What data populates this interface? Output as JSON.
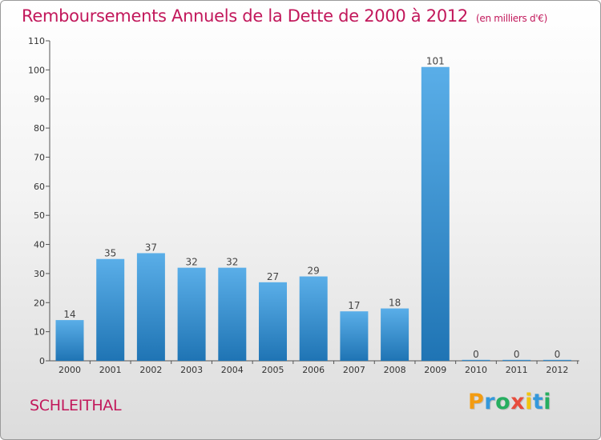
{
  "title": "Remboursements Annuels de la Dette de 2000 à 2012",
  "unit": "(en milliers d'€)",
  "commune": "SCHLEITHAL",
  "logo": {
    "text": "Proxiti",
    "letters": [
      {
        "ch": "P",
        "color": "#f39c12"
      },
      {
        "ch": "r",
        "color": "#3498db"
      },
      {
        "ch": "o",
        "color": "#27ae60"
      },
      {
        "ch": "x",
        "color": "#e74c3c"
      },
      {
        "ch": "i",
        "color": "#f1c40f"
      },
      {
        "ch": "t",
        "color": "#3498db"
      },
      {
        "ch": "i",
        "color": "#27ae60"
      }
    ]
  },
  "colors": {
    "title": "#c2185b",
    "bar_top": "#5aaee8",
    "bar_bottom": "#1f74b4"
  },
  "chart_data": {
    "type": "bar",
    "categories": [
      "2000",
      "2001",
      "2002",
      "2003",
      "2004",
      "2005",
      "2006",
      "2007",
      "2008",
      "2009",
      "2010",
      "2011",
      "2012"
    ],
    "values": [
      14,
      35,
      37,
      32,
      32,
      27,
      29,
      17,
      18,
      101,
      0,
      0,
      0
    ],
    "ylim": [
      0,
      110
    ],
    "yticks": [
      0,
      10,
      20,
      30,
      40,
      50,
      60,
      70,
      80,
      90,
      100,
      110
    ],
    "grid": false,
    "legend": "none"
  }
}
